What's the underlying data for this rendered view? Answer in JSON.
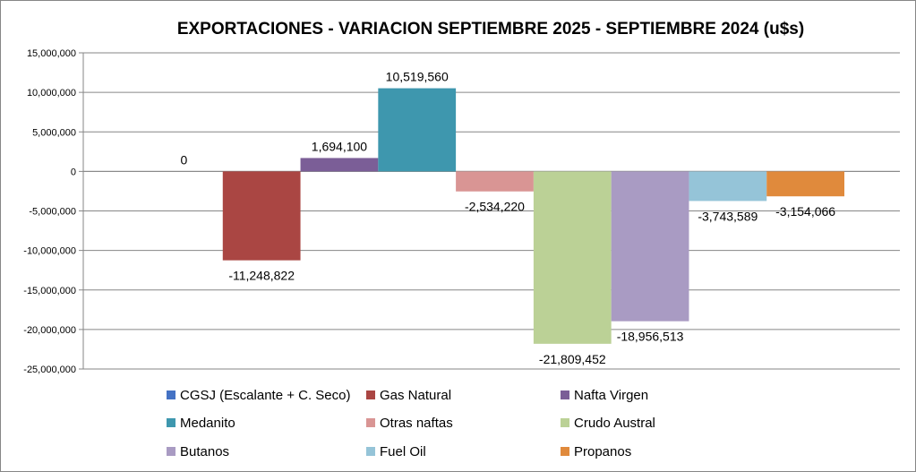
{
  "chart_data": {
    "type": "bar",
    "title": "EXPORTACIONES - VARIACION SEPTIEMBRE 2025 - SEPTIEMBRE 2024 (u$s)",
    "xlabel": "",
    "ylabel": "",
    "ylim": [
      -25000000,
      15000000
    ],
    "yticks": [
      15000000,
      10000000,
      5000000,
      0,
      -5000000,
      -10000000,
      -15000000,
      -20000000,
      -25000000
    ],
    "ytick_labels": [
      "15,000,000",
      "10,000,000",
      "5,000,000",
      "0",
      "-5,000,000",
      "-10,000,000",
      "-15,000,000",
      "-20,000,000",
      "-25,000,000"
    ],
    "grid": true,
    "legend_position": "bottom",
    "series": [
      {
        "name": "CGSJ (Escalante + C. Seco)",
        "value": 0,
        "label": "0",
        "color": "#4472C4"
      },
      {
        "name": "Gas Natural",
        "value": -11248822,
        "label": "-11,248,822",
        "color": "#AA4643"
      },
      {
        "name": "Nafta Virgen",
        "value": 1694100,
        "label": "1,694,100",
        "color": "#7B5E97"
      },
      {
        "name": "Medanito",
        "value": 10519560,
        "label": "10,519,560",
        "color": "#3E97AE"
      },
      {
        "name": "Otras naftas",
        "value": -2534220,
        "label": "-2,534,220",
        "color": "#D99594"
      },
      {
        "name": "Crudo Austral",
        "value": -21809452,
        "label": "-21,809,452",
        "color": "#BBD196"
      },
      {
        "name": "Butanos",
        "value": -18956513,
        "label": "-18,956,513",
        "color": "#A99BC3"
      },
      {
        "name": "Fuel Oil",
        "value": -3743589,
        "label": "-3,743,589",
        "color": "#95C4D8"
      },
      {
        "name": "Propanos",
        "value": -3154066,
        "label": "-3,154,066",
        "color": "#E08A3C"
      }
    ]
  }
}
